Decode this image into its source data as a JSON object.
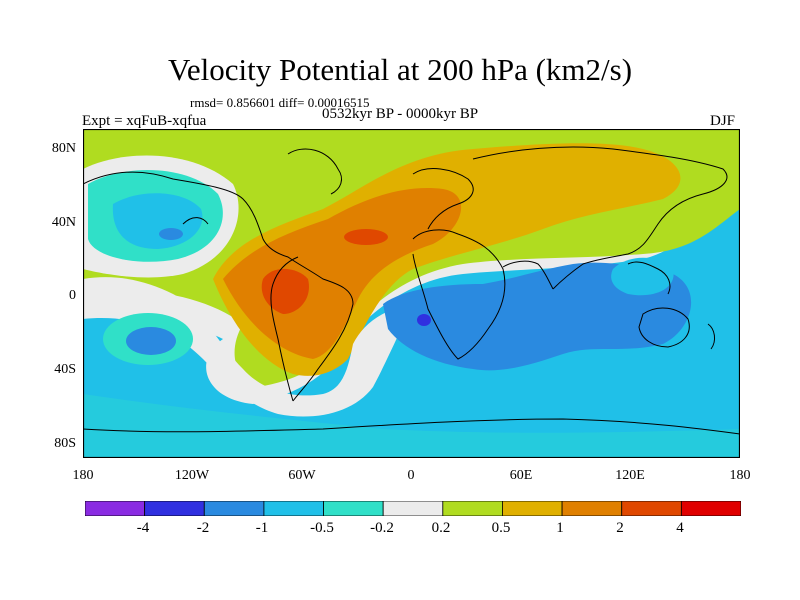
{
  "figure": {
    "title": "Velocity Potential at 200 hPa (km2/s)",
    "stats": "rmsd= 0.856601 diff= 0.00016515",
    "period": "0532kyr BP - 0000kyr BP",
    "experiment": "Expt = xqFuB-xqfua",
    "season": "DJF"
  },
  "axes": {
    "lat_labels": [
      "80N",
      "40N",
      "0",
      "40S",
      "80S"
    ],
    "lon_labels": [
      "180",
      "120W",
      "60W",
      "0",
      "60E",
      "120E",
      "180"
    ]
  },
  "colorbar": {
    "labels": [
      "-4",
      "-2",
      "-1",
      "-0.5",
      "-0.2",
      "0.2",
      "0.5",
      "1",
      "2",
      "4"
    ],
    "colors": [
      "#8a2be2",
      "#3030e0",
      "#2a8ae0",
      "#20c0e8",
      "#30e0c8",
      "#ececec",
      "#b0dc20",
      "#e0b000",
      "#e08000",
      "#e04800",
      "#e00000"
    ]
  }
}
